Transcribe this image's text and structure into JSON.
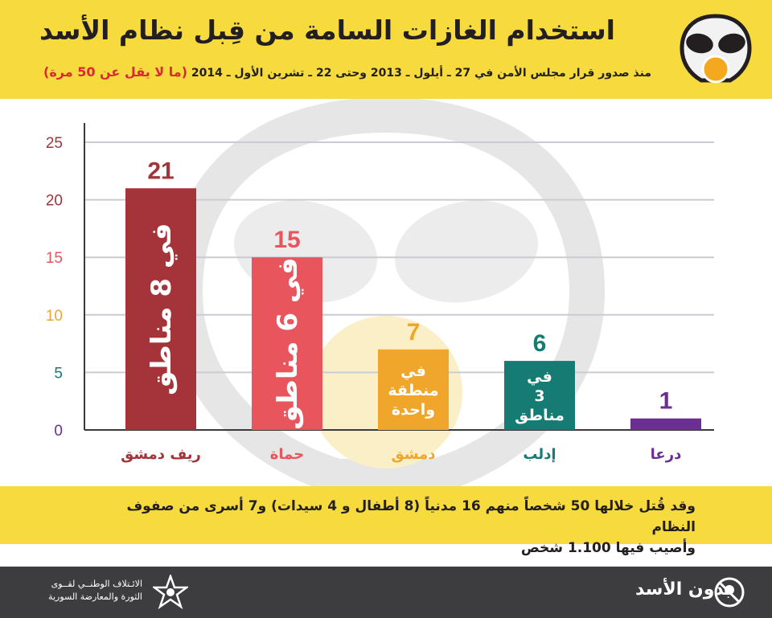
{
  "header": {
    "title": "استخدام الغازات السامة من قِبل نظام الأسد",
    "subtitle": "منذ صدور قرار مجلس الأمن في 27 ـ أيلول ـ 2013 وحتى 22 ـ تشرين الأول ـ 2014",
    "subtitle_highlight": "(ما لا يقل عن 50 مرة)",
    "icon": "gas-mask-icon"
  },
  "chart_data": {
    "type": "bar",
    "categories": [
      "ريف دمشق",
      "حماة",
      "دمشق",
      "إدلب",
      "درعا"
    ],
    "values": [
      21,
      15,
      7,
      6,
      1
    ],
    "bar_labels": [
      "في 8 مناطق",
      "في 6 مناطق",
      "في منطقة واحدة",
      "في 3 مناطق",
      ""
    ],
    "colors": [
      "#a5343a",
      "#e8555c",
      "#f0a62a",
      "#167b72",
      "#6b2f8f"
    ],
    "yticks": [
      0,
      5,
      10,
      15,
      20,
      25
    ],
    "ytick_colors": [
      "#6b2f8f",
      "#167b72",
      "#f0a62a",
      "#e8555c",
      "#a5343a",
      "#a5343a"
    ],
    "ylim": [
      0,
      25
    ],
    "grid": true,
    "title": "",
    "xlabel": "",
    "ylabel": ""
  },
  "note": {
    "line1": "وقد قُتل خلالها 50 شخصاً منهم 16 مدنياً (8 أطفال و 4 سيدات) و7 أسرى من صفوف النظام",
    "line2": "وأصيب فيها 1.100 شخص"
  },
  "footer": {
    "coalition_line1": "الائـتلاف الوطنــي لقــوى",
    "coalition_line2": "الثورة والمعارضة السورية",
    "brand": "بدون الأسد",
    "coalition_icon": "star-logo-icon",
    "brand_icon": "no-assad-logo-icon"
  }
}
